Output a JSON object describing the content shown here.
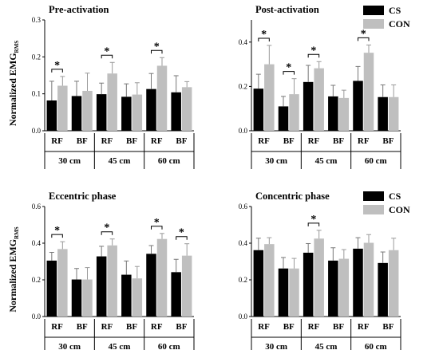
{
  "ylabel": "Normalized EMG",
  "ylabel_sub": "RMS",
  "colors": {
    "CS": "#000000",
    "CON": "#bfbfbf"
  },
  "chart_data": [
    {
      "type": "bar",
      "title": "Pre-activation",
      "ylim": [
        0,
        0.3
      ],
      "yticks": [
        "0.0",
        "0.1",
        "0.2",
        "0.3"
      ],
      "categories": [
        "RF",
        "BF",
        "RF",
        "BF",
        "RF",
        "BF"
      ],
      "groups": [
        "30 cm",
        "45 cm",
        "60 cm"
      ],
      "series": [
        {
          "name": "CS",
          "values": [
            0.082,
            0.094,
            0.099,
            0.092,
            0.113,
            0.104
          ],
          "errors": [
            0.052,
            0.04,
            0.03,
            0.035,
            0.042,
            0.045
          ]
        },
        {
          "name": "CON",
          "values": [
            0.122,
            0.108,
            0.155,
            0.098,
            0.176,
            0.118
          ],
          "errors": [
            0.025,
            0.048,
            0.03,
            0.032,
            0.022,
            0.015
          ]
        }
      ],
      "significance": [
        0,
        2,
        4
      ],
      "legend": {
        "position": "top-right",
        "entries": [
          "CS",
          "CON"
        ]
      }
    },
    {
      "type": "bar",
      "title": "Post-activation",
      "ylim": [
        0,
        0.5
      ],
      "yticks": [
        "0.0",
        "0.2",
        "0.4"
      ],
      "categories": [
        "RF",
        "BF",
        "RF",
        "BF",
        "RF",
        "BF"
      ],
      "groups": [
        "30 cm",
        "45 cm",
        "60 cm"
      ],
      "series": [
        {
          "name": "CS",
          "values": [
            0.19,
            0.11,
            0.22,
            0.155,
            0.225,
            0.152
          ],
          "errors": [
            0.065,
            0.045,
            0.075,
            0.05,
            0.065,
            0.055
          ]
        },
        {
          "name": "CON",
          "values": [
            0.3,
            0.165,
            0.282,
            0.148,
            0.352,
            0.152
          ],
          "errors": [
            0.085,
            0.07,
            0.03,
            0.035,
            0.035,
            0.055
          ]
        }
      ],
      "significance": [
        0,
        1,
        2,
        4
      ],
      "legend": {
        "position": "top-right",
        "entries": [
          "CS",
          "CON"
        ]
      }
    },
    {
      "type": "bar",
      "title": "Eccentric phase",
      "ylim": [
        0,
        0.6
      ],
      "yticks": [
        "0.0",
        "0.2",
        "0.4",
        "0.6"
      ],
      "categories": [
        "RF",
        "BF",
        "RF",
        "BF",
        "RF",
        "BF"
      ],
      "groups": [
        "30 cm",
        "45 cm",
        "60 cm"
      ],
      "series": [
        {
          "name": "CS",
          "values": [
            0.305,
            0.202,
            0.328,
            0.228,
            0.342,
            0.242
          ],
          "errors": [
            0.045,
            0.06,
            0.055,
            0.075,
            0.045,
            0.07
          ]
        },
        {
          "name": "CON",
          "values": [
            0.368,
            0.202,
            0.388,
            0.208,
            0.423,
            0.332
          ],
          "errors": [
            0.04,
            0.065,
            0.035,
            0.065,
            0.03,
            0.065
          ]
        }
      ],
      "significance": [
        0,
        2,
        4,
        5
      ],
      "legend": {
        "position": "top-right",
        "entries": [
          "CS",
          "CON"
        ]
      }
    },
    {
      "type": "bar",
      "title": "Concentric phase",
      "ylim": [
        0,
        0.6
      ],
      "yticks": [
        "0.0",
        "0.2",
        "0.4",
        "0.6"
      ],
      "categories": [
        "RF",
        "BF",
        "RF",
        "BF",
        "RF",
        "BF"
      ],
      "groups": [
        "30 cm",
        "45 cm",
        "60 cm"
      ],
      "series": [
        {
          "name": "CS",
          "values": [
            0.362,
            0.262,
            0.348,
            0.305,
            0.37,
            0.292
          ],
          "errors": [
            0.065,
            0.06,
            0.05,
            0.07,
            0.06,
            0.06
          ]
        },
        {
          "name": "CON",
          "values": [
            0.395,
            0.262,
            0.425,
            0.315,
            0.402,
            0.362
          ],
          "errors": [
            0.035,
            0.055,
            0.045,
            0.05,
            0.045,
            0.065
          ]
        }
      ],
      "significance": [
        2
      ],
      "legend": {
        "position": "top-right",
        "entries": [
          "CS",
          "CON"
        ]
      }
    }
  ]
}
